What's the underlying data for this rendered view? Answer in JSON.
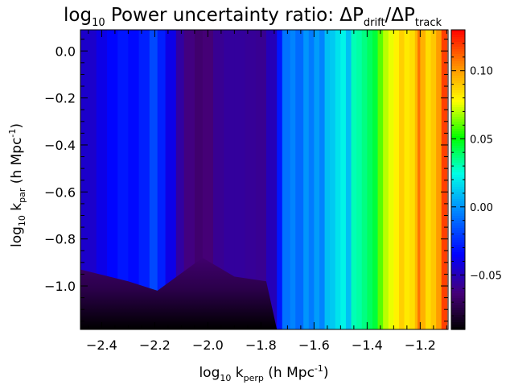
{
  "chart_data": {
    "type": "heatmap",
    "title": {
      "prefix": "log",
      "prefix_sub": "10",
      "main": " Power uncertainty ratio: ΔP",
      "num_sub": "drift",
      "sep": "/ΔP",
      "den_sub": "track"
    },
    "xlabel": {
      "pre": "log",
      "pre_sub": "10",
      "mid": " k",
      "mid_sub": "perp",
      "post": " (h Mpc",
      "post_sup": "-1",
      "end": ")"
    },
    "ylabel": {
      "pre": "log",
      "pre_sub": "10",
      "mid": " k",
      "mid_sub": "par",
      "post": " (h Mpc",
      "post_sup": "-1",
      "end": ")"
    },
    "xlim": [
      -2.48,
      -1.095
    ],
    "ylim": [
      -1.185,
      0.09
    ],
    "x_ticks": [
      -2.4,
      -2.2,
      -2.0,
      -1.8,
      -1.6,
      -1.4,
      -1.2
    ],
    "x_tick_labels": [
      "−2.4",
      "−2.2",
      "−2.0",
      "−1.8",
      "−1.6",
      "−1.4",
      "−1.2"
    ],
    "y_ticks": [
      0.0,
      -0.2,
      -0.4,
      -0.6,
      -0.8,
      -1.0
    ],
    "y_tick_labels": [
      "0.0",
      "−0.2",
      "−0.4",
      "−0.6",
      "−0.8",
      "−1.0"
    ],
    "colorbar": {
      "range": [
        -0.09,
        0.13
      ],
      "ticks": [
        0.1,
        0.05,
        0.0,
        -0.05
      ],
      "tick_labels": [
        "0.10",
        "0.05",
        "0.00",
        "−0.05"
      ],
      "colormap": "rainbow"
    },
    "column_values": {
      "x": [
        -2.48,
        -2.42,
        -2.38,
        -2.34,
        -2.3,
        -2.26,
        -2.22,
        -2.19,
        -2.16,
        -2.12,
        -2.09,
        -2.05,
        -2.02,
        -1.98,
        -1.94,
        -1.9,
        -1.86,
        -1.82,
        -1.78,
        -1.74,
        -1.72,
        -1.69,
        -1.67,
        -1.64,
        -1.62,
        -1.6,
        -1.58,
        -1.56,
        -1.54,
        -1.52,
        -1.5,
        -1.48,
        -1.46,
        -1.44,
        -1.42,
        -1.4,
        -1.38,
        -1.36,
        -1.34,
        -1.32,
        -1.3,
        -1.28,
        -1.26,
        -1.24,
        -1.22,
        -1.21,
        -1.2,
        -1.18,
        -1.16,
        -1.14,
        -1.12,
        -1.1
      ],
      "value": [
        -0.046,
        -0.04,
        -0.034,
        -0.03,
        -0.033,
        -0.028,
        -0.018,
        -0.028,
        -0.04,
        -0.055,
        -0.062,
        -0.066,
        -0.064,
        -0.058,
        -0.056,
        -0.056,
        -0.057,
        -0.058,
        -0.05,
        -0.03,
        -0.008,
        -0.004,
        -0.01,
        0.0,
        -0.006,
        0.002,
        -0.004,
        0.01,
        0.012,
        0.018,
        0.022,
        0.01,
        0.03,
        0.032,
        0.036,
        0.04,
        0.044,
        0.06,
        0.07,
        0.075,
        0.08,
        0.088,
        0.082,
        0.085,
        0.094,
        0.108,
        0.095,
        0.085,
        0.09,
        0.1,
        0.118,
        0.13
      ]
    },
    "low_kpar_region": {
      "x": [
        -2.48,
        -2.3,
        -2.19,
        -2.02,
        -1.9,
        -1.78,
        -1.74,
        -1.7
      ],
      "boundary_y": [
        -0.93,
        -0.98,
        -1.02,
        -0.88,
        -0.96,
        -0.98,
        -1.185,
        -1.185
      ],
      "bottom_value": -0.09
    }
  }
}
